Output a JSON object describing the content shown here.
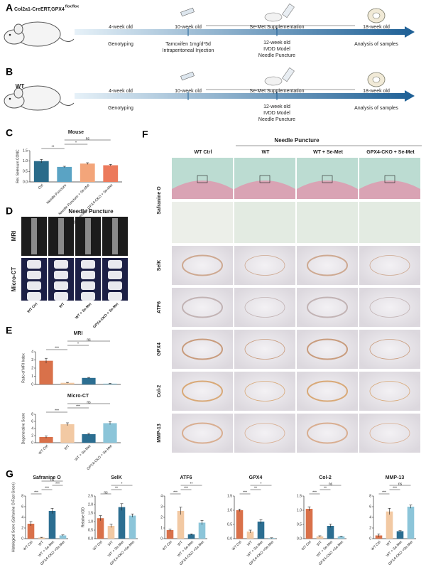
{
  "panel_a": {
    "label": "A",
    "strain": "Col2a1-CreERT,GPX4",
    "strain_sup": "flox/flox",
    "age_1": "4-week old",
    "age_2": "10-week old",
    "supplement": "Se-Met Supplementation",
    "age_3": "18-week old",
    "step_1": "Genotyping",
    "step_2": [
      "Tamoxifen 1mg/d*5d",
      "Intraperitoneal Injection"
    ],
    "step_3": [
      "12-week old",
      "IVDD Model",
      "Needle Puncture"
    ],
    "step_4": "Analysis of samples"
  },
  "panel_b": {
    "label": "B",
    "strain": "WT",
    "age_1": "4-week old",
    "age_2": "10-week old",
    "supplement": "Se-Met Supplementation",
    "age_3": "18-week old",
    "step_1": "Genotyping",
    "step_3": [
      "12-week old",
      "IVDD Model",
      "Needle Puncture"
    ],
    "step_4": "Analysis of samples"
  },
  "panel_c": {
    "label": "C",
    "chart": {
      "type": "bar",
      "title": "Mouse",
      "y_label": "Rel. Selenium CONC",
      "categories": [
        "Ctrl",
        "Needle Puncture",
        "Needle Puncture + Se-Met",
        "Needle Puncture GPX4-CKO + Se-Met"
      ],
      "values": [
        1.0,
        0.72,
        0.88,
        0.8
      ],
      "errors": [
        0.08,
        0.03,
        0.04,
        0.04
      ],
      "colors": [
        "#2a6b8a",
        "#5aa3c4",
        "#f3a57a",
        "#ec7a5c"
      ],
      "ylim": [
        0,
        1.5
      ],
      "yticks": [
        {
          "value": 0,
          "label": "0.0"
        },
        0.5,
        {
          "value": 1,
          "label": "1.0"
        },
        1.5
      ],
      "significance": [
        "**",
        "*",
        "ns"
      ]
    }
  },
  "panel_d": {
    "label": "D",
    "group": "Needle Puncture",
    "rows": [
      "MRI",
      "Micro-CT"
    ],
    "columns": [
      "WT Ctrl",
      "WT",
      "WT + Se-Met",
      "GPX4-CKO + Se-Met"
    ]
  },
  "panel_e": {
    "label": "E",
    "charts": [
      {
        "type": "bar",
        "title": "MRI",
        "y_label": "Ratio of MRI Index",
        "values": [
          2.9,
          0.2,
          0.8,
          0.1
        ],
        "errors": [
          0.3,
          0.05,
          0.06,
          0.05
        ],
        "colors": [
          "#d9714a",
          "#f2c9a3",
          "#2c6e91",
          "#8cc5d9"
        ],
        "ylim": [
          0,
          4
        ],
        "yticks": [
          0,
          1,
          2,
          3,
          4
        ],
        "significance": [
          "***",
          "*",
          "ns"
        ]
      },
      {
        "type": "bar",
        "title": "Micro-CT",
        "y_label": "Degenerative Score",
        "categories": [
          "WT Ctrl",
          "WT",
          "WT + Se-Met",
          "GPX4-CKO + Se-Met"
        ],
        "values": [
          1.6,
          5.2,
          2.4,
          5.5
        ],
        "errors": [
          0.3,
          0.4,
          0.3,
          0.4
        ],
        "colors": [
          "#d9714a",
          "#f2c9a3",
          "#2c6e91",
          "#8cc5d9"
        ],
        "ylim": [
          0,
          8
        ],
        "yticks": [
          0,
          2,
          4,
          6,
          8
        ],
        "significance": [
          "***",
          "***",
          "ns"
        ]
      }
    ]
  },
  "panel_f": {
    "label": "F",
    "group": "Needle Puncture",
    "columns": [
      "WT Ctrl",
      "WT",
      "WT + Se-Met",
      "GPX4-CKO + Se-Met"
    ],
    "rows": [
      "Safranine O",
      "SelK",
      "ATF6",
      "GPX4",
      "Col-2",
      "MMP-13"
    ]
  },
  "panel_g": {
    "label": "G",
    "charts": [
      {
        "type": "bar",
        "title": "Safranine O",
        "y_label": "Histological Score (Safranine O-Fast Green)",
        "categories": [
          "WT Ctrl",
          "WT",
          "WT + Se-Met",
          "GPX4-CKO +Se-Met"
        ],
        "values": [
          2.8,
          0.2,
          5.2,
          0.6
        ],
        "errors": [
          0.4,
          0.05,
          0.5,
          0.1
        ],
        "colors": [
          "#d9714a",
          "#f2c9a3",
          "#2c6e91",
          "#8cc5d9"
        ],
        "ylim": [
          0,
          8
        ],
        "yticks": [
          0,
          2,
          4,
          6,
          8
        ],
        "significance": [
          "***",
          "***",
          "***",
          "ns"
        ]
      },
      {
        "type": "bar",
        "title": "SelK",
        "y_label": "Relative IOD",
        "categories": [
          "WT Ctrl",
          "WT",
          "WT + Se-Met",
          "GPX4-CKO +Se-Met"
        ],
        "values": [
          1.2,
          0.75,
          1.85,
          1.35
        ],
        "errors": [
          0.15,
          0.1,
          0.2,
          0.1
        ],
        "colors": [
          "#d9714a",
          "#f2c9a3",
          "#2c6e91",
          "#8cc5d9"
        ],
        "ylim": [
          0,
          2.5
        ],
        "yticks": [
          {
            "value": 0,
            "label": "0.0"
          },
          0.5,
          {
            "value": 1,
            "label": "1.0"
          },
          1.5,
          {
            "value": 2,
            "label": "2.0"
          },
          2.5
        ],
        "significance": [
          "ns",
          "**",
          "*"
        ]
      },
      {
        "type": "bar",
        "title": "ATF6",
        "categories": [
          "WT Ctrl",
          "WT",
          "WT + Se-Met",
          "GPX4-CKO +Se-Met"
        ],
        "values": [
          0.8,
          2.6,
          0.4,
          1.5
        ],
        "errors": [
          0.1,
          0.35,
          0.05,
          0.2
        ],
        "colors": [
          "#d9714a",
          "#f2c9a3",
          "#2c6e91",
          "#8cc5d9"
        ],
        "ylim": [
          0,
          4
        ],
        "yticks": [
          0,
          1,
          2,
          3,
          4
        ],
        "significance": [
          "***",
          "***",
          "**"
        ]
      },
      {
        "type": "bar",
        "title": "GPX4",
        "categories": [
          "WT Ctrl",
          "WT",
          "WT + Se-Met",
          "GPX4-CKO +Se-Met"
        ],
        "values": [
          1.0,
          0.25,
          0.6,
          0.02
        ],
        "errors": [
          0.04,
          0.05,
          0.07,
          0.01
        ],
        "colors": [
          "#d9714a",
          "#f2c9a3",
          "#2c6e91",
          "#8cc5d9"
        ],
        "ylim": [
          0,
          1.5
        ],
        "yticks": [
          {
            "value": 0,
            "label": "0.0"
          },
          0.5,
          {
            "value": 1,
            "label": "1.0"
          },
          1.5
        ],
        "significance": [
          "***",
          "**",
          "*"
        ]
      },
      {
        "type": "bar",
        "title": "Col-2",
        "categories": [
          "WT Ctrl",
          "WT",
          "WT + Se-Met",
          "GPX4-CKO +Se-Met"
        ],
        "values": [
          1.05,
          0.08,
          0.45,
          0.08
        ],
        "errors": [
          0.07,
          0.02,
          0.06,
          0.01
        ],
        "colors": [
          "#d9714a",
          "#f2c9a3",
          "#2c6e91",
          "#8cc5d9"
        ],
        "ylim": [
          0,
          1.5
        ],
        "yticks": [
          {
            "value": 0,
            "label": "0.0"
          },
          0.5,
          {
            "value": 1,
            "label": "1.0"
          },
          1.5
        ],
        "significance": [
          "***",
          "**",
          "ns"
        ]
      },
      {
        "type": "bar",
        "title": "MMP-13",
        "categories": [
          "WT Ctrl",
          "WT",
          "WT + Se-Met",
          "GPX4-CKO +Se-Met"
        ],
        "values": [
          0.6,
          5.1,
          1.4,
          6.0
        ],
        "errors": [
          0.3,
          0.6,
          0.1,
          0.3
        ],
        "colors": [
          "#d9714a",
          "#f2c9a3",
          "#2c6e91",
          "#8cc5d9"
        ],
        "ylim": [
          0,
          8
        ],
        "yticks": [
          0,
          2,
          4,
          6,
          8
        ],
        "significance": [
          "***",
          "***",
          "ns"
        ]
      }
    ]
  }
}
